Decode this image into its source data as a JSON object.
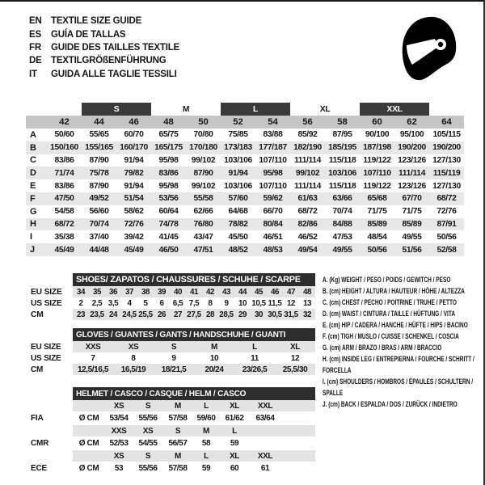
{
  "header": {
    "languages": [
      {
        "code": "EN",
        "text": "TEXTILE SIZE GUIDE"
      },
      {
        "code": "ES",
        "text": "GUÍA DE TALLAS"
      },
      {
        "code": "FR",
        "text": "GUIDE DES TAILLES TEXTILE"
      },
      {
        "code": "DE",
        "text": "TEXTILGRÖßENFÜHRUNG"
      },
      {
        "code": "IT",
        "text": "GUIDA ALLE TAGLIE TESSILI"
      }
    ],
    "helmet_icon": "racing-helmet-icon"
  },
  "textile_table": {
    "bands": [
      {
        "label": "S",
        "dark": true
      },
      {
        "label": "M",
        "dark": false
      },
      {
        "label": "L",
        "dark": true
      },
      {
        "label": "XL",
        "dark": false
      },
      {
        "label": "XXL",
        "dark": true
      }
    ],
    "sizes": [
      "42",
      "44",
      "46",
      "48",
      "50",
      "52",
      "54",
      "56",
      "58",
      "60",
      "62",
      "64"
    ],
    "rows": [
      {
        "label": "A",
        "values": [
          "50/60",
          "55/65",
          "60/70",
          "65/75",
          "70/80",
          "75/85",
          "83/88",
          "85/92",
          "87/95",
          "90/100",
          "95/100",
          "105/115"
        ]
      },
      {
        "label": "B",
        "values": [
          "150/160",
          "155/165",
          "160/170",
          "165/175",
          "170/180",
          "173/183",
          "177/187",
          "182/190",
          "185/195",
          "187/198",
          "190/200",
          "190/200"
        ]
      },
      {
        "label": "C",
        "values": [
          "83/86",
          "87/90",
          "91/94",
          "95/98",
          "99/102",
          "103/106",
          "107/110",
          "111/114",
          "115/118",
          "119/122",
          "123/126",
          "127/130"
        ]
      },
      {
        "label": "D",
        "values": [
          "71/74",
          "75/78",
          "79/82",
          "83/86",
          "87/90",
          "91/94",
          "95/98",
          "99/102",
          "103/106",
          "107/110",
          "111/114",
          "115/119"
        ]
      },
      {
        "label": "E",
        "values": [
          "83/86",
          "87/90",
          "91/94",
          "95/98",
          "99/102",
          "103/106",
          "107/110",
          "111/114",
          "115/118",
          "119/122",
          "123/126",
          "127/130"
        ]
      },
      {
        "label": "F",
        "values": [
          "47/50",
          "49/52",
          "51/54",
          "53/56",
          "55/58",
          "57/60",
          "59/62",
          "61/63",
          "63/66",
          "65/68",
          "67/70",
          "68/72"
        ]
      },
      {
        "label": "G",
        "values": [
          "54/58",
          "56/60",
          "58/62",
          "60/64",
          "62/66",
          "64/68",
          "66/70",
          "68/72",
          "70/74",
          "71/75",
          "71/75",
          "72/76"
        ]
      },
      {
        "label": "H",
        "values": [
          "68/72",
          "70/74",
          "72/76",
          "74/78",
          "76/80",
          "78/82",
          "80/84",
          "82/86",
          "84/88",
          "85/89",
          "85/89",
          "87/91"
        ]
      },
      {
        "label": "I",
        "values": [
          "35/38",
          "37/40",
          "39/42",
          "41/45",
          "43/47",
          "45/50",
          "46/51",
          "46/52",
          "47/53",
          "48/54",
          "49/55",
          "50/56"
        ]
      },
      {
        "label": "J",
        "values": [
          "45/49",
          "44/48",
          "45/49",
          "46/50",
          "47/51",
          "48/52",
          "48/53",
          "49/54",
          "49/55",
          "50/56",
          "51/56",
          "52/58"
        ]
      }
    ]
  },
  "shoes": {
    "title": "SHOES/ ZAPATOS / CHAUSSURES / SCHUHE / SCARPE",
    "row_labels": [
      "EU SIZE",
      "US SIZE",
      "CM"
    ],
    "rows": {
      "eu": [
        "34",
        "35",
        "36",
        "37",
        "38",
        "39",
        "40",
        "41",
        "42",
        "43",
        "44",
        "45",
        "46",
        "47",
        "48"
      ],
      "us": [
        "2",
        "2,5",
        "3,5",
        "4",
        "5",
        "6",
        "6,5",
        "7,5",
        "8",
        "9",
        "10",
        "10,5",
        "11,5",
        "12",
        "13"
      ],
      "cm": [
        "23",
        "23,5",
        "24",
        "24,5",
        "25,5",
        "26",
        "27",
        "27,5",
        "28",
        "28,5",
        "29",
        "30",
        "30,5",
        "31,5",
        "32"
      ]
    }
  },
  "gloves": {
    "title": "GLOVES / GUANTES / GANTS / HANDSCHUHE / GUANTI",
    "row_labels": [
      "EU SIZE",
      "US SIZE",
      "CM"
    ],
    "rows": {
      "eu": [
        "XXS",
        "XS",
        "S",
        "M",
        "L",
        "XL"
      ],
      "us": [
        "7",
        "8",
        "9",
        "10",
        "11",
        "12"
      ],
      "cm": [
        "12,5/16,5",
        "16,5/19",
        "18/21,5",
        "20/24",
        "23/26,5",
        "25,5/30"
      ]
    }
  },
  "helmet": {
    "title": "HELMET / CASCO / CASQUE / HELM / CASCO",
    "groups": [
      {
        "label": "FIA",
        "diameter_label": "Ø CM",
        "sizes": [
          "XS",
          "S",
          "M",
          "L",
          "XL",
          "XXL"
        ],
        "values": [
          "53/54",
          "55/56",
          "57/58",
          "59/60",
          "61/62",
          "63/64"
        ]
      },
      {
        "label": "CMR",
        "diameter_label": "Ø CM",
        "sizes": [
          "XXS",
          "XS",
          "S",
          "M",
          "L",
          ""
        ],
        "values": [
          "52/53",
          "54/55",
          "56/57",
          "58",
          "59",
          ""
        ]
      },
      {
        "label": "ECE",
        "diameter_label": "Ø CM",
        "sizes": [
          "XS",
          "S",
          "M",
          "L",
          "XL",
          "XXL"
        ],
        "values": [
          "53",
          "55/56",
          "57/58",
          "59",
          "60",
          "61"
        ]
      }
    ]
  },
  "legend": {
    "items": [
      "A. (Kg) WEIGHT / PESO / POIDS / GEWITCH / PESO",
      "B. (cm) HEIGHT / ALTURA / HAUTEUR / HÖHE / ALTEZZA",
      "C. (cm) CHEST / PECHO / POITRINE / TRUHE / PETTO",
      "D. (cm) WAIST / CINTURA / TAILLE / HÜFTUNG / VITA",
      "E. (cm) HIP / CADERA / HANCHE / HÜFTE / HIPS / BACINO",
      "F. (cm) TIGH / MUSLO / CUISSE / SCHENKEL / COSCIA",
      "G. (cm) ARM / BRAZO / BRAS / ARM / BRACCIO",
      "H. (cm) INSIDE LEG / ENTREPIERNA / FOURCHE / SCHRITT / FORCELLA",
      "I. (cm) SHOULDERS / HOMBROS / ÉPAULES / SCHULTERN / SPALLE",
      "J. (cm) BACK / ESPALDA / DOS / ZURÜCK / INDIETRO"
    ]
  },
  "colors": {
    "section_bar": "#2d2d2d",
    "size_band_dark": "#3a3a3a",
    "size_number_row": "#c5c5c5",
    "alt_row_gray": "#e7e7e7",
    "sub_row_gray": "#e3e3e3"
  }
}
